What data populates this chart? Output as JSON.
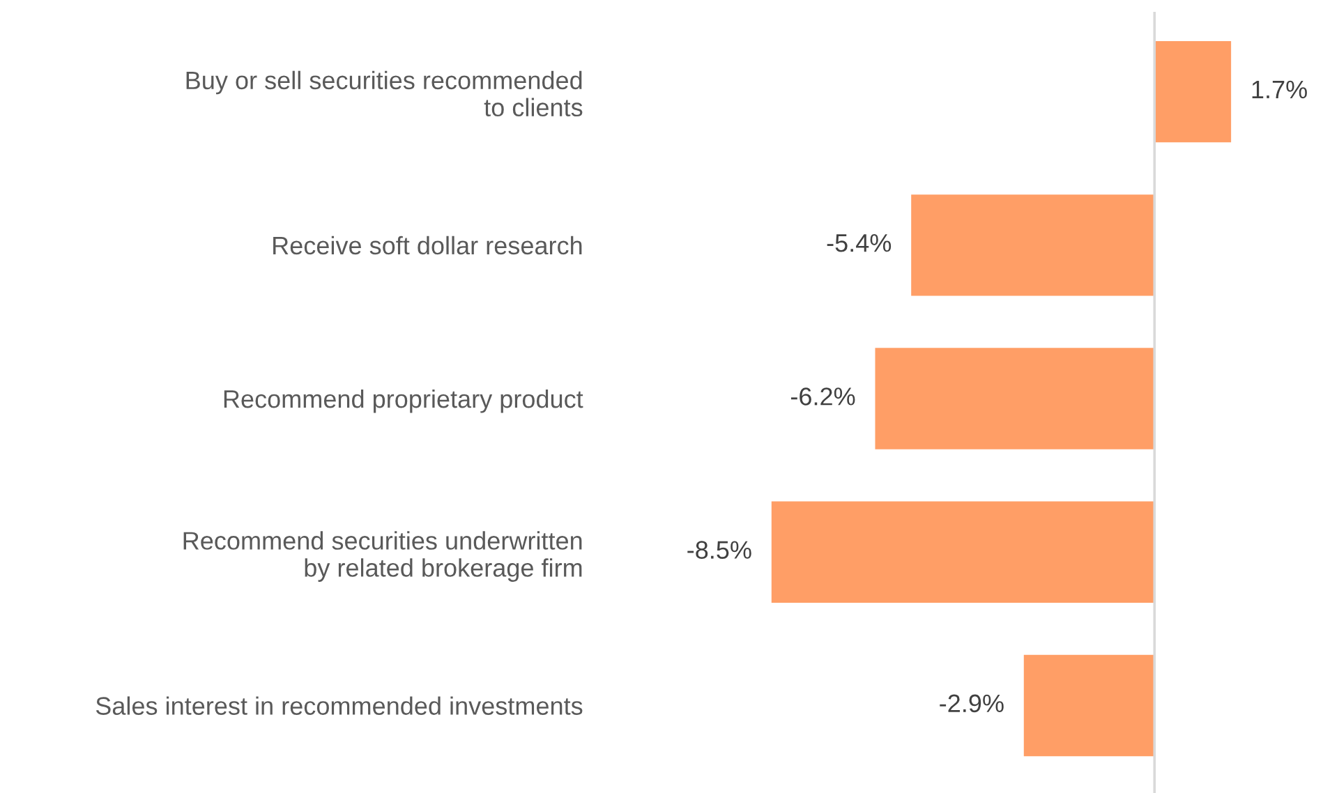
{
  "chart_data": {
    "type": "bar",
    "orientation": "horizontal",
    "categories": [
      "Buy or sell securities recommended\nto clients",
      "Receive soft dollar research",
      "Recommend proprietary product",
      "Recommend securities underwritten\nby related brokerage firm",
      "Sales interest in recommended investments"
    ],
    "values": [
      1.7,
      -5.4,
      -6.2,
      -8.5,
      -2.9
    ],
    "value_labels": [
      "1.7%",
      "-5.4%",
      "-6.2%",
      "-8.5%",
      "-2.9%"
    ],
    "color": "#ff9e66",
    "grid": false,
    "legend": false
  }
}
